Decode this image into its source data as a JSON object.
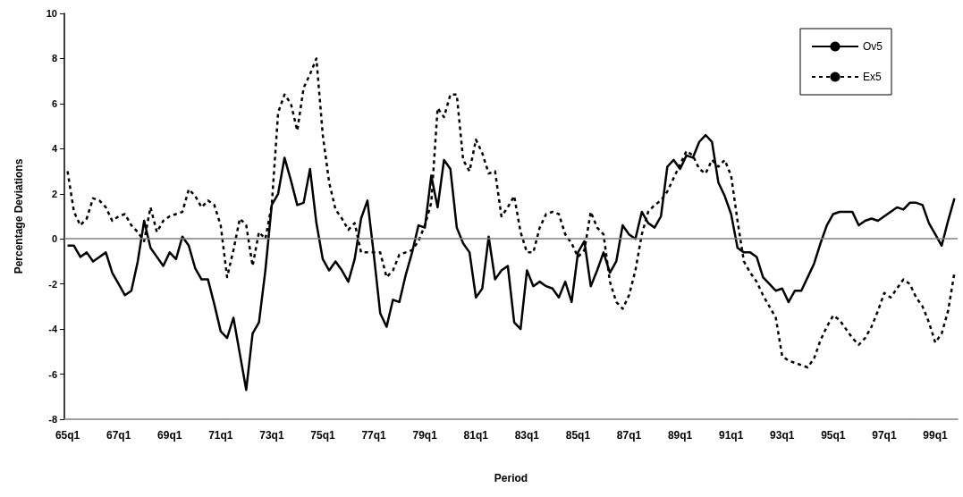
{
  "chart_data": {
    "type": "line",
    "xlabel": "Period",
    "ylabel": "Percentage Deviations",
    "categories": [
      "65q1",
      null,
      null,
      null,
      null,
      null,
      null,
      null,
      "67q1",
      null,
      null,
      null,
      null,
      null,
      null,
      null,
      "69q1",
      null,
      null,
      null,
      null,
      null,
      null,
      null,
      "71q1",
      null,
      null,
      null,
      null,
      null,
      null,
      null,
      "73q1",
      null,
      null,
      null,
      null,
      null,
      null,
      null,
      "75q1",
      null,
      null,
      null,
      null,
      null,
      null,
      null,
      "77q1",
      null,
      null,
      null,
      null,
      null,
      null,
      null,
      "79q1",
      null,
      null,
      null,
      null,
      null,
      null,
      null,
      "81q1",
      null,
      null,
      null,
      null,
      null,
      null,
      null,
      "83q1",
      null,
      null,
      null,
      null,
      null,
      null,
      null,
      "85q1",
      null,
      null,
      null,
      null,
      null,
      null,
      null,
      "87q1",
      null,
      null,
      null,
      null,
      null,
      null,
      null,
      "89q1",
      null,
      null,
      null,
      null,
      null,
      null,
      null,
      "91q1",
      null,
      null,
      null,
      null,
      null,
      null,
      null,
      "93q1",
      null,
      null,
      null,
      null,
      null,
      null,
      null,
      "95q1",
      null,
      null,
      null,
      null,
      null,
      null,
      null,
      "97q1",
      null,
      null,
      null,
      null,
      null,
      null,
      null,
      "99q1",
      null,
      null,
      null
    ],
    "series": [
      {
        "name": "Ov5",
        "color": "#000000",
        "line_style": "solid",
        "values": [
          -0.3,
          -0.3,
          -0.8,
          -0.6,
          -1.0,
          -0.8,
          -0.6,
          -1.5,
          -2.0,
          -2.5,
          -2.3,
          -1.0,
          0.8,
          -0.4,
          -0.8,
          -1.2,
          -0.6,
          -0.9,
          0.1,
          -0.3,
          -1.3,
          -1.8,
          -1.8,
          -2.9,
          -4.1,
          -4.4,
          -3.5,
          -5.1,
          -6.7,
          -4.2,
          -3.7,
          -1.4,
          1.5,
          2.0,
          3.6,
          2.6,
          1.5,
          1.6,
          3.1,
          0.7,
          -0.9,
          -1.4,
          -1.0,
          -1.4,
          -1.9,
          -0.9,
          0.9,
          1.7,
          -0.7,
          -3.3,
          -3.9,
          -2.7,
          -2.8,
          -1.6,
          -0.6,
          0.6,
          0.5,
          2.8,
          1.4,
          3.5,
          3.1,
          0.5,
          -0.2,
          -0.6,
          -2.6,
          -2.2,
          0.1,
          -1.8,
          -1.4,
          -1.2,
          -3.7,
          -4.0,
          -1.4,
          -2.1,
          -1.9,
          -2.1,
          -2.2,
          -2.6,
          -1.9,
          -2.8,
          -0.6,
          -0.1,
          -2.1,
          -1.4,
          -0.6,
          -1.5,
          -1.0,
          0.6,
          0.2,
          0.0,
          1.2,
          0.7,
          0.5,
          1.0,
          3.2,
          3.5,
          3.1,
          3.7,
          3.6,
          4.3,
          4.6,
          4.3,
          2.5,
          1.9,
          1.1,
          -0.4,
          -0.6,
          -0.6,
          -0.8,
          -1.7,
          -2.0,
          -2.3,
          -2.2,
          -2.8,
          -2.3,
          -2.3,
          -1.7,
          -1.1,
          -0.2,
          0.6,
          1.1,
          1.2,
          1.2,
          1.2,
          0.6,
          0.8,
          0.9,
          0.8,
          1.0,
          1.2,
          1.4,
          1.3,
          1.6,
          1.6,
          1.5,
          0.7,
          0.2,
          -0.3,
          0.8,
          1.8
        ]
      },
      {
        "name": "Ex5",
        "color": "#000000",
        "line_style": "dashed",
        "values": [
          3.0,
          1.2,
          0.6,
          0.9,
          1.8,
          1.7,
          1.4,
          0.8,
          1.0,
          1.1,
          0.6,
          0.3,
          -0.1,
          1.4,
          0.3,
          0.8,
          1.0,
          1.1,
          1.2,
          2.2,
          1.9,
          1.4,
          1.7,
          1.5,
          0.6,
          -1.7,
          -0.5,
          0.9,
          0.6,
          -1.2,
          0.3,
          0.0,
          1.5,
          5.6,
          6.4,
          6.0,
          4.8,
          6.7,
          7.3,
          8.0,
          4.6,
          2.5,
          1.3,
          0.9,
          0.4,
          0.7,
          -0.6,
          -0.6,
          -0.6,
          -0.6,
          -1.7,
          -1.4,
          -0.7,
          -0.6,
          -0.5,
          -0.1,
          0.6,
          1.6,
          5.8,
          5.4,
          6.4,
          6.4,
          3.5,
          3.0,
          4.4,
          3.8,
          2.9,
          3.0,
          1.0,
          1.4,
          1.9,
          0.3,
          -0.6,
          -0.6,
          0.5,
          1.1,
          1.2,
          1.1,
          0.2,
          -0.2,
          -0.8,
          -0.5,
          1.2,
          0.5,
          0.2,
          -1.9,
          -2.8,
          -3.1,
          -2.5,
          -1.4,
          0.2,
          1.2,
          1.5,
          1.7,
          2.1,
          2.7,
          3.3,
          3.9,
          3.7,
          3.1,
          2.9,
          3.5,
          3.2,
          3.5,
          2.8,
          0.8,
          -1.0,
          -1.5,
          -1.9,
          -2.5,
          -3.0,
          -3.5,
          -5.2,
          -5.4,
          -5.5,
          -5.6,
          -5.7,
          -5.3,
          -4.5,
          -3.9,
          -3.4,
          -3.6,
          -4.0,
          -4.4,
          -4.7,
          -4.4,
          -3.9,
          -3.2,
          -2.4,
          -2.6,
          -2.2,
          -1.8,
          -2.0,
          -2.6,
          -3.0,
          -3.7,
          -4.6,
          -4.2,
          -3.2,
          -1.5
        ]
      }
    ],
    "ylim": [
      -8,
      10
    ],
    "yticks": [
      -8,
      -6,
      -4,
      -2,
      0,
      2,
      4,
      6,
      8,
      10
    ],
    "grid": false,
    "legend": "top right",
    "ref_lines": [
      {
        "axis": "y",
        "value": 0,
        "color": "#808080"
      }
    ]
  }
}
